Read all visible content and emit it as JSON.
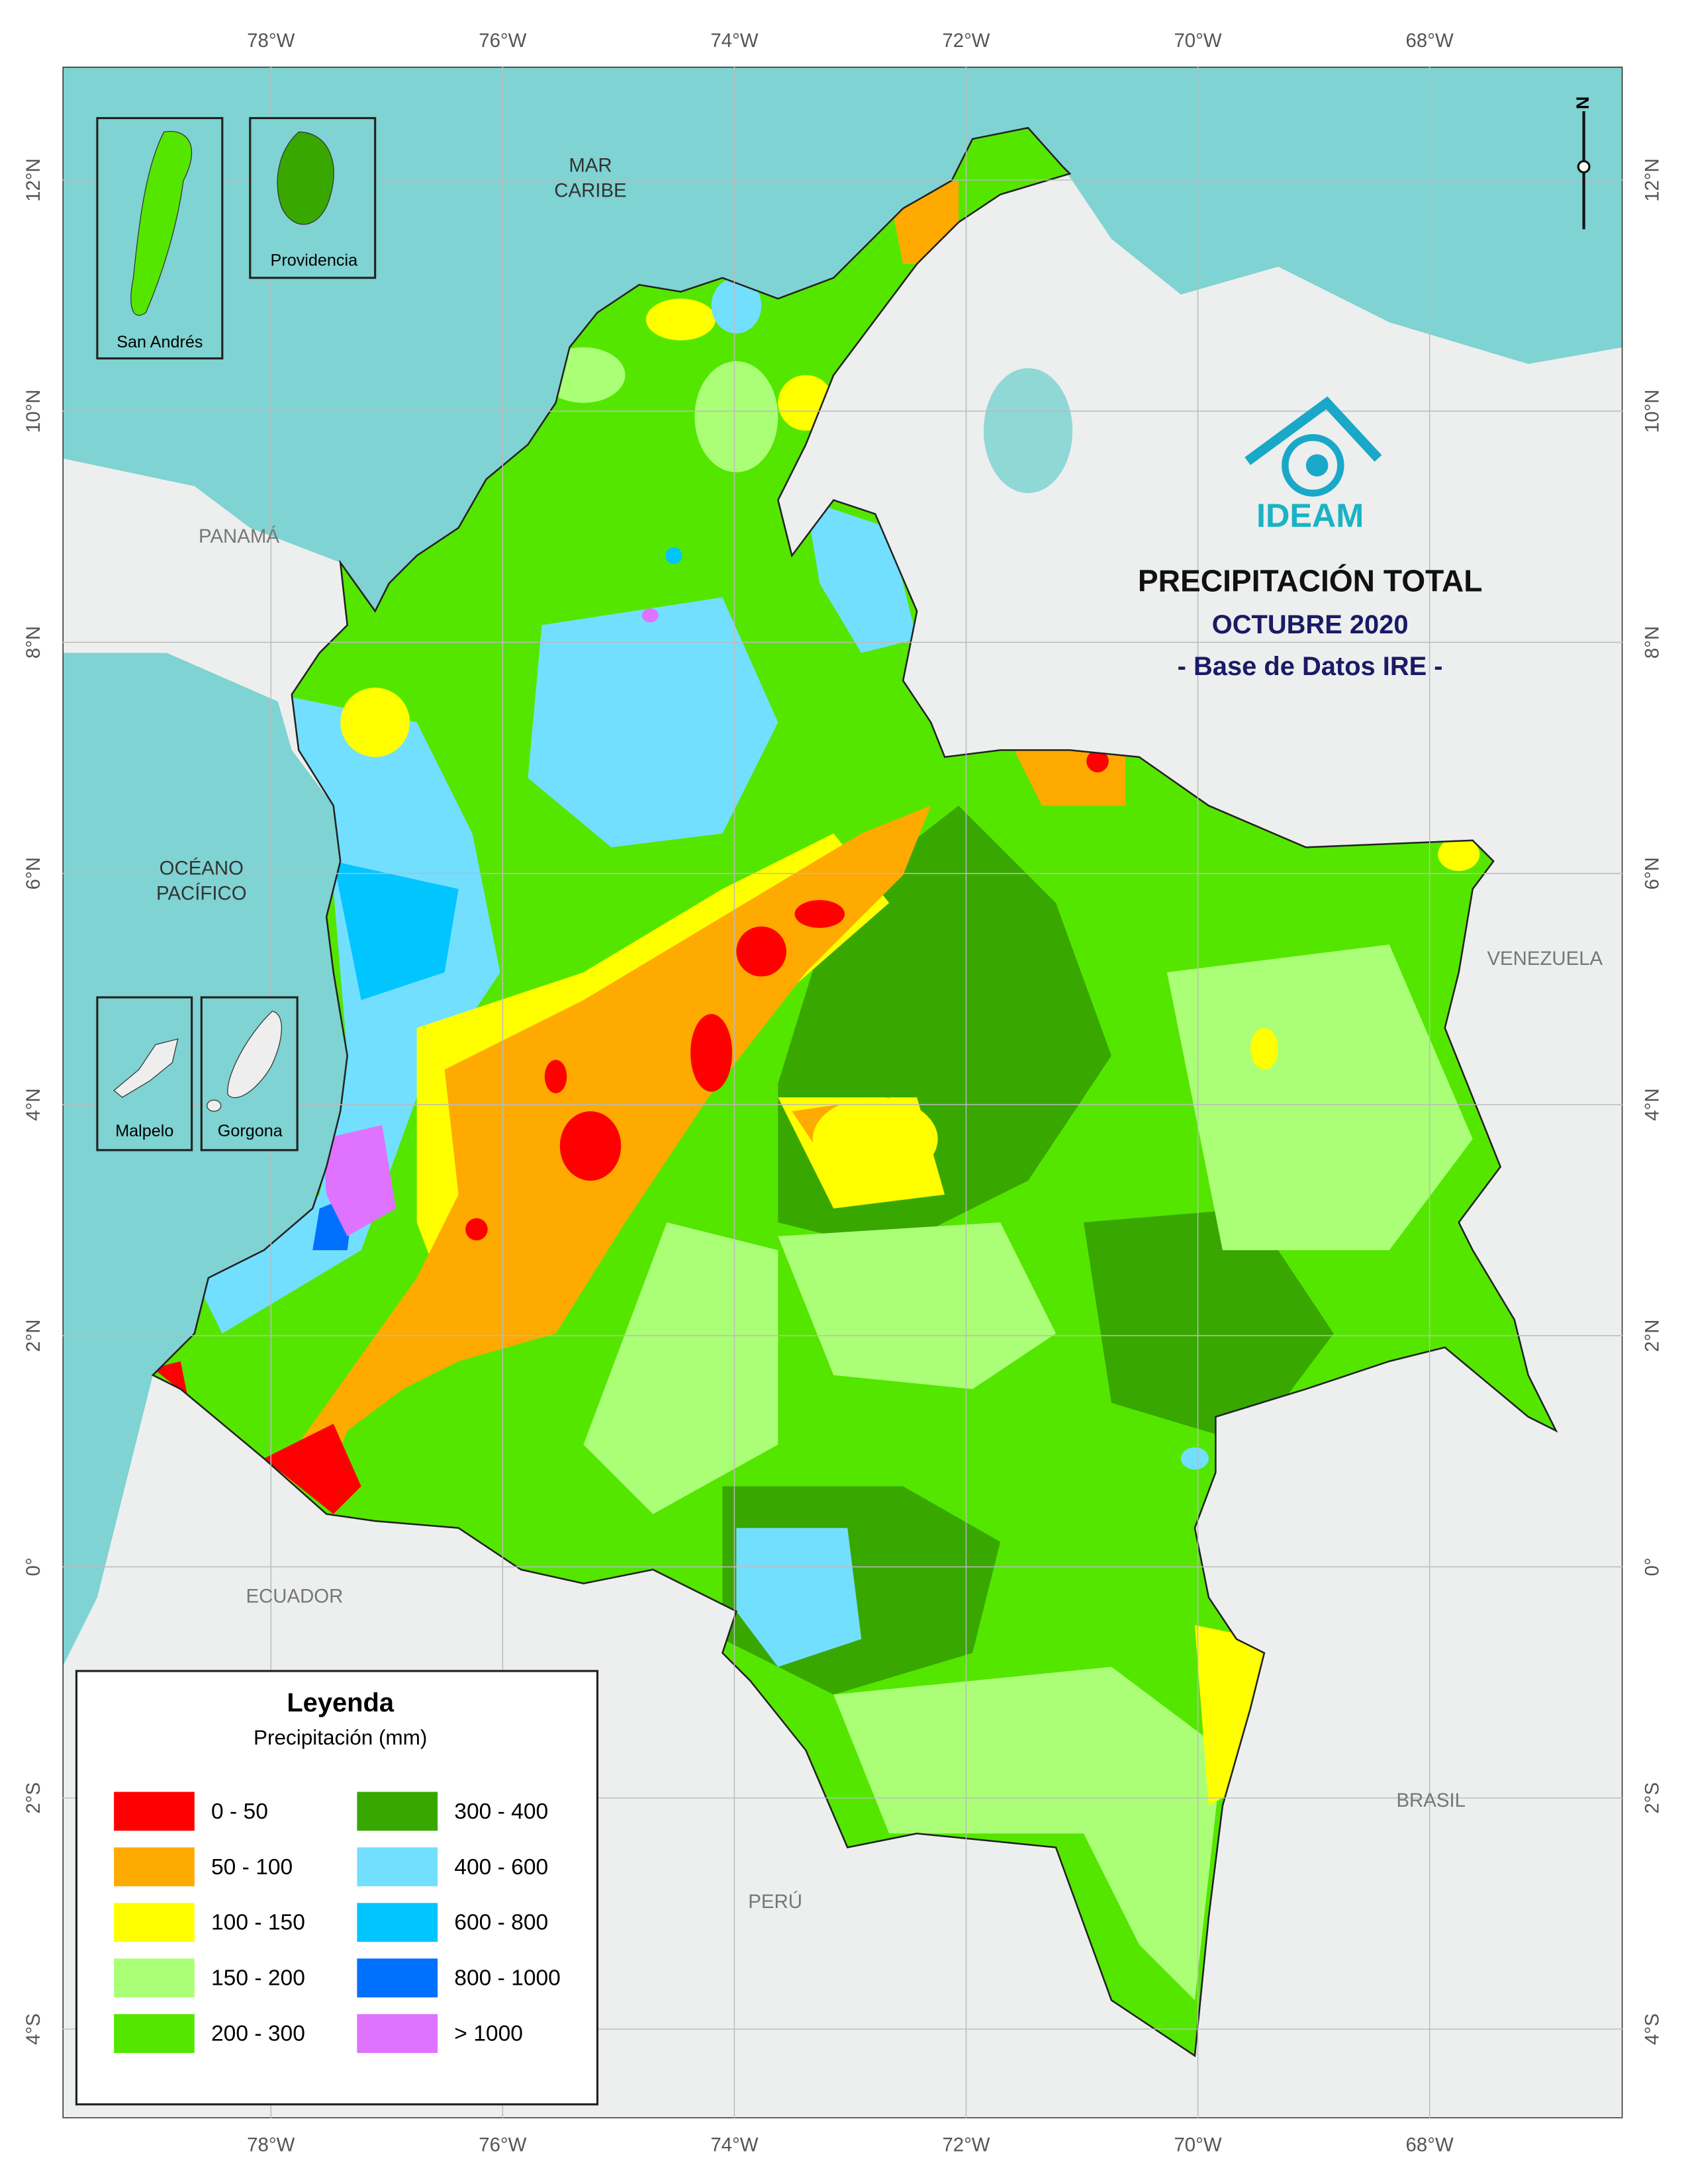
{
  "map": {
    "title": "PRECIPITACIÓN TOTAL",
    "subtitle": "OCTUBRE 2020",
    "source": "- Base de Datos IRE -",
    "logo_text": "IDEAM",
    "north_label": "N",
    "lon_ticks": [
      {
        "value": -78,
        "label": "78°W"
      },
      {
        "value": -76,
        "label": "76°W"
      },
      {
        "value": -74,
        "label": "74°W"
      },
      {
        "value": -72,
        "label": "72°W"
      },
      {
        "value": -70,
        "label": "70°W"
      },
      {
        "value": -68,
        "label": "68°W"
      }
    ],
    "lat_ticks": [
      {
        "value": 12,
        "label": "12°N"
      },
      {
        "value": 10,
        "label": "10°N"
      },
      {
        "value": 8,
        "label": "8°N"
      },
      {
        "value": 6,
        "label": "6°N"
      },
      {
        "value": 4,
        "label": "4°N"
      },
      {
        "value": 2,
        "label": "2°N"
      },
      {
        "value": 0,
        "label": "0°"
      },
      {
        "value": -2,
        "label": "2°S"
      },
      {
        "value": -4,
        "label": "4°S"
      }
    ],
    "places": [
      [
        "MAR",
        "CARIBE"
      ],
      [
        "PANAMÁ"
      ],
      [
        "OCÉANO",
        "PACÍFICO"
      ],
      [
        "VENEZUELA"
      ],
      [
        "ECUADOR"
      ],
      [
        "PERÚ"
      ],
      [
        "BRASIL"
      ]
    ],
    "insets": [
      "San Andrés",
      "Providencia",
      "Malpelo",
      "Gorgona"
    ],
    "legend": {
      "title": "Leyenda",
      "subtitle": "Precipitación (mm)",
      "items": [
        {
          "label": "0 - 50",
          "color": "#ff0000"
        },
        {
          "label": "50 - 100",
          "color": "#ffaa00"
        },
        {
          "label": "100 - 150",
          "color": "#ffff00"
        },
        {
          "label": "150 - 200",
          "color": "#aaff77"
        },
        {
          "label": "200 - 300",
          "color": "#55e600"
        },
        {
          "label": "300 - 400",
          "color": "#38a800"
        },
        {
          "label": "400 - 600",
          "color": "#73dfff"
        },
        {
          "label": "600 - 800",
          "color": "#00c5ff"
        },
        {
          "label": "800 - 1000",
          "color": "#0070ff"
        },
        {
          "label": "> 1000",
          "color": "#df73ff"
        }
      ]
    }
  }
}
